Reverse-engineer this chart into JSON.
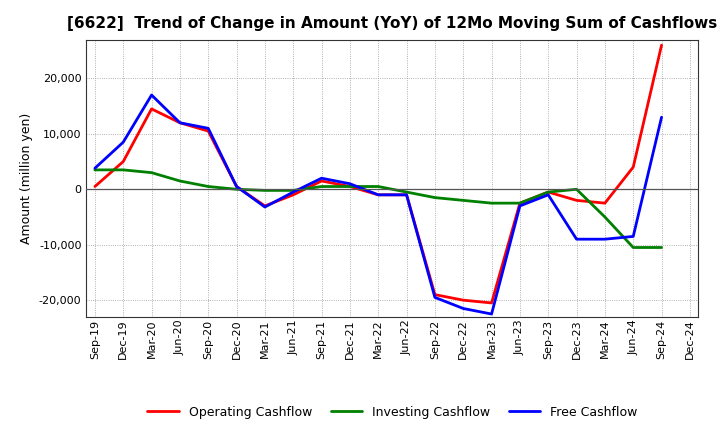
{
  "title": "[6622]  Trend of Change in Amount (YoY) of 12Mo Moving Sum of Cashflows",
  "ylabel": "Amount (million yen)",
  "x_labels": [
    "Sep-19",
    "Dec-19",
    "Mar-20",
    "Jun-20",
    "Sep-20",
    "Dec-20",
    "Mar-21",
    "Jun-21",
    "Sep-21",
    "Dec-21",
    "Mar-22",
    "Jun-22",
    "Sep-22",
    "Dec-22",
    "Mar-23",
    "Jun-23",
    "Sep-23",
    "Dec-23",
    "Mar-24",
    "Jun-24",
    "Sep-24",
    "Dec-24"
  ],
  "operating": [
    500,
    5000,
    14500,
    12000,
    10500,
    500,
    -3000,
    -1000,
    1500,
    500,
    -1000,
    -1000,
    -19000,
    -20000,
    -20500,
    -2500,
    -500,
    -2000,
    -2500,
    4000,
    26000,
    null
  ],
  "investing": [
    3500,
    3500,
    3000,
    1500,
    500,
    0,
    -200,
    -200,
    500,
    500,
    500,
    -500,
    -1500,
    -2000,
    -2500,
    -2500,
    -500,
    0,
    -5000,
    -10500,
    -10500,
    null
  ],
  "free": [
    3800,
    8500,
    17000,
    12000,
    11000,
    500,
    -3200,
    -500,
    2000,
    1000,
    -1000,
    -1000,
    -19500,
    -21500,
    -22500,
    -3000,
    -1000,
    -9000,
    -9000,
    -8500,
    13000,
    null
  ],
  "operating_color": "#ff0000",
  "investing_color": "#008000",
  "free_color": "#0000ff",
  "ylim": [
    -23000,
    27000
  ],
  "yticks": [
    -20000,
    -10000,
    0,
    10000,
    20000
  ],
  "background_color": "#ffffff",
  "grid_color": "#999999",
  "title_fontsize": 11,
  "legend_fontsize": 9,
  "tick_fontsize": 8
}
